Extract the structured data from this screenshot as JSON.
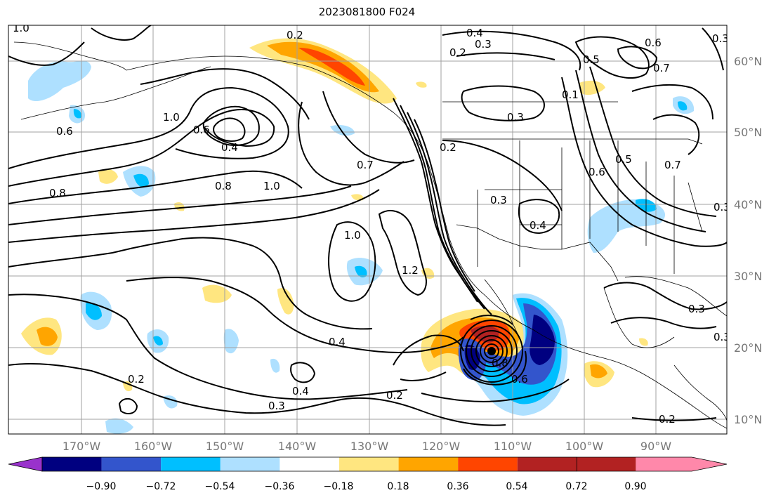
{
  "title": "2023081800 F024",
  "lon_ticks": [
    "170°W",
    "160°W",
    "150°W",
    "140°W",
    "130°W",
    "120°W",
    "110°W",
    "100°W",
    "90°W"
  ],
  "lat_ticks": [
    "60°N",
    "50°N",
    "40°N",
    "30°N",
    "20°N",
    "10°N"
  ],
  "colorbar": {
    "tick_labels": [
      "−0.90",
      "−0.72",
      "−0.54",
      "−0.36",
      "−0.18",
      "0.18",
      "0.36",
      "0.54",
      "0.72",
      "0.90"
    ],
    "colors": [
      "#9932cc",
      "#000080",
      "#3355cc",
      "#00bfff",
      "#aee0ff",
      "#ffffff",
      "#ffe680",
      "#ffa500",
      "#ff4500",
      "#b22222",
      "#ff88aa"
    ]
  },
  "contour_labels": [
    "1.0",
    "0.8",
    "0.6",
    "0.2",
    "0.4",
    "0.3",
    "0.2",
    "0.6",
    "0.7",
    "0.5",
    "0.7",
    "0.1",
    "1.0",
    "0.6",
    "0.4",
    "0.3",
    "0.7",
    "0.8",
    "1.0",
    "0.2",
    "0.3",
    "0.4",
    "0.6",
    "0.5",
    "0.3",
    "1.0",
    "1.2",
    "0.3",
    "0.4",
    "0.2",
    "0.3",
    "0.4",
    "0.3",
    "0.2",
    "0.2",
    "0.3",
    "0.8",
    "0.6"
  ]
}
